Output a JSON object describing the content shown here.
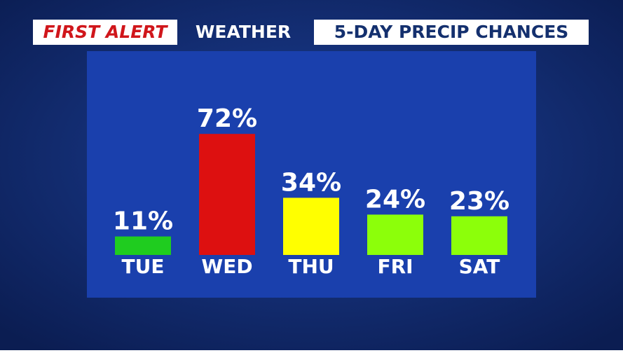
{
  "chart_data": {
    "type": "bar",
    "brand": "FIRST ALERT",
    "brand_suffix": "WEATHER",
    "title": "5-DAY PRECIP CHANCES",
    "categories": [
      "TUE",
      "WED",
      "THU",
      "FRI",
      "SAT"
    ],
    "values": [
      11,
      72,
      34,
      24,
      23
    ],
    "value_labels": [
      "11%",
      "72%",
      "34%",
      "24%",
      "23%"
    ],
    "colors": [
      "#1fcc1f",
      "#dd1010",
      "#ffff00",
      "#8cff0a",
      "#8cff0a"
    ]
  }
}
